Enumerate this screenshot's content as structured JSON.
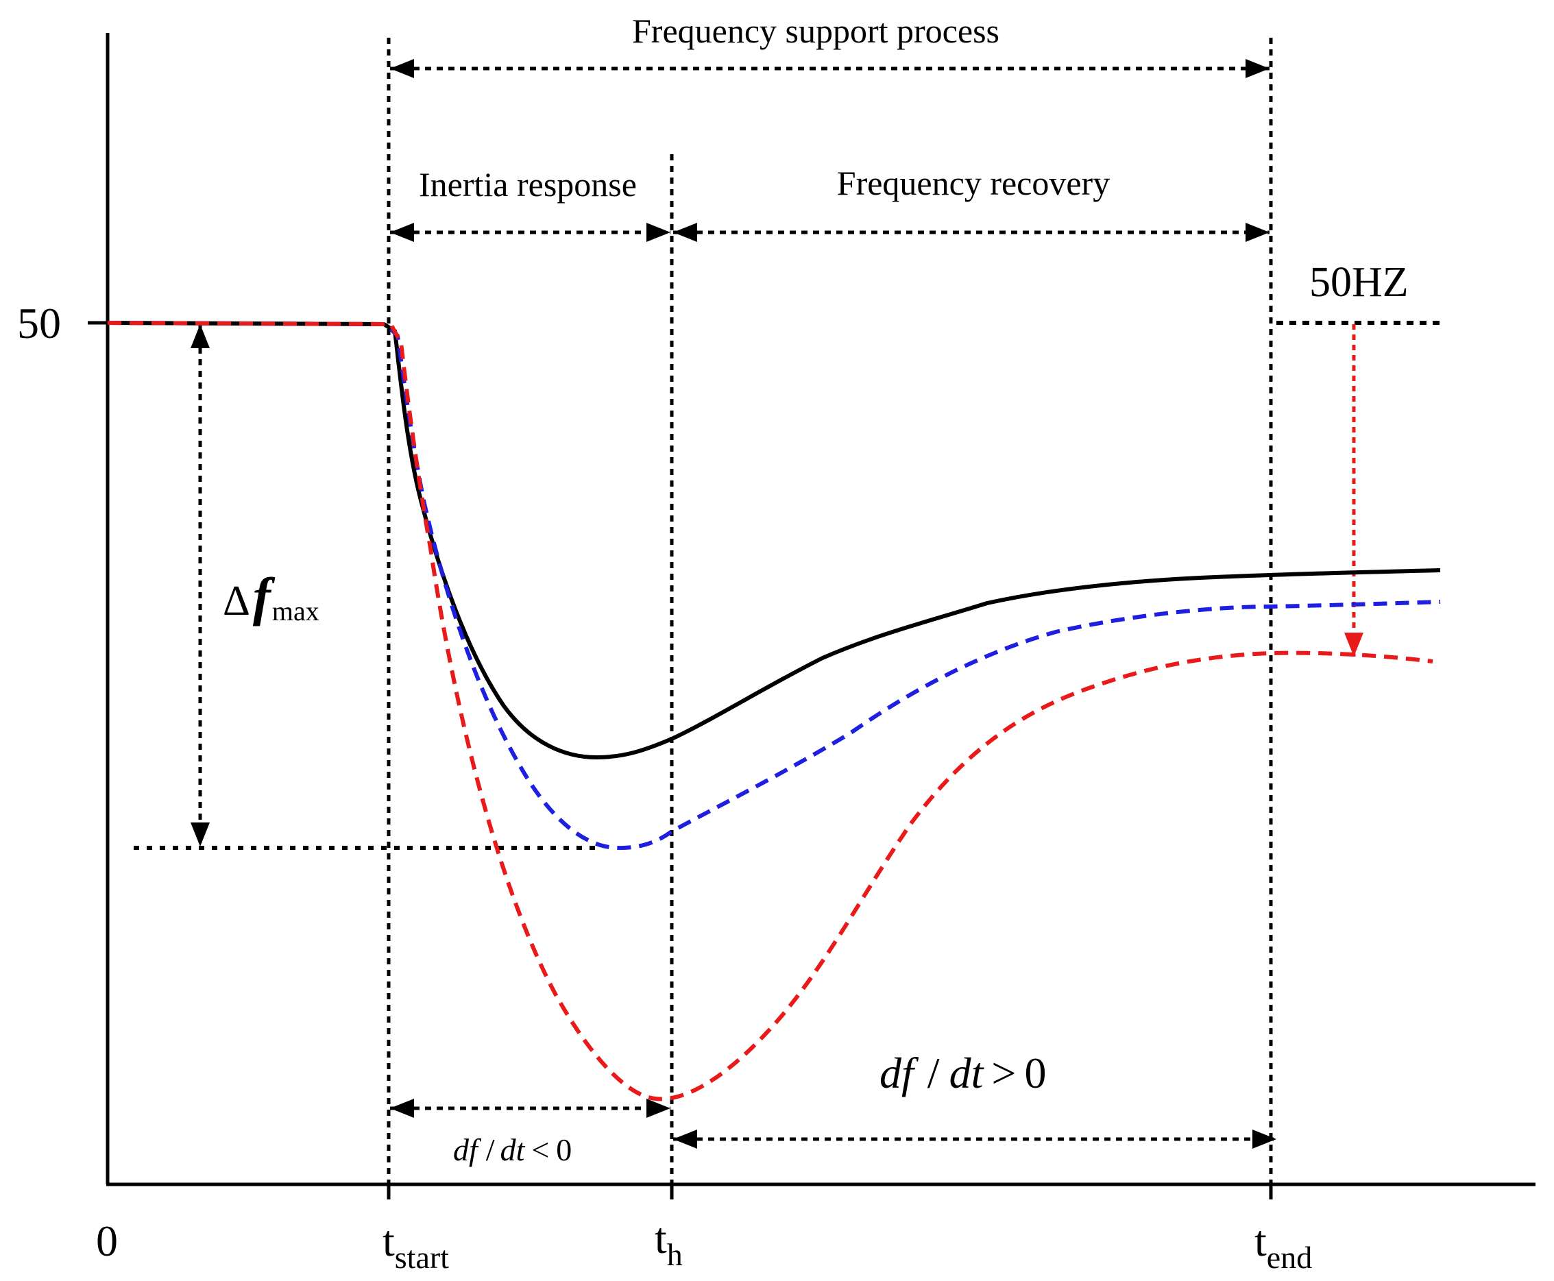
{
  "diagram": {
    "y_axis": {
      "tick_label": "50"
    },
    "x_axis": {
      "origin_label": "0",
      "ticks": [
        {
          "base": "t",
          "sub": "start"
        },
        {
          "base": "t",
          "sub": "h"
        },
        {
          "base": "t",
          "sub": "end"
        }
      ]
    },
    "phases": {
      "support": "Frequency support process",
      "inertia": "Inertia response",
      "recovery": "Frequency recovery"
    },
    "nominal_label": "50HZ",
    "delta_f": {
      "symbol": "Δ",
      "var": "f",
      "sub": "max"
    },
    "rates": {
      "negative": {
        "num": "df",
        "slash": "/",
        "den": "dt",
        "rel": "<",
        "val": "0"
      },
      "positive": {
        "num": "df",
        "slash": "/",
        "den": "dt",
        "rel": ">",
        "val": "0"
      }
    },
    "colors": {
      "axis": "#000000",
      "curve_black": "#000000",
      "curve_blue": "#1f1fe0",
      "curve_red": "#e81a1a"
    }
  }
}
